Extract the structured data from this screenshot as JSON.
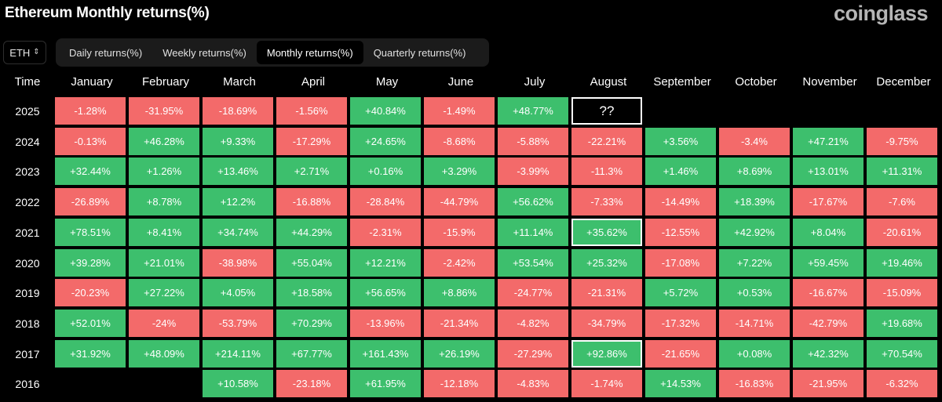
{
  "title": "Ethereum Monthly returns(%)",
  "brand": "coinglass",
  "asset_selector": {
    "value": "ETH"
  },
  "tabs": [
    {
      "label": "Daily returns(%)",
      "active": false
    },
    {
      "label": "Weekly returns(%)",
      "active": false
    },
    {
      "label": "Monthly returns(%)",
      "active": true
    },
    {
      "label": "Quarterly returns(%)",
      "active": false
    }
  ],
  "colors": {
    "positive": "#3dbf6d",
    "negative": "#f36a6a",
    "background": "#000000"
  },
  "chart_data": {
    "type": "table",
    "row_header": "Time",
    "columns": [
      "January",
      "February",
      "March",
      "April",
      "May",
      "June",
      "July",
      "August",
      "September",
      "October",
      "November",
      "December"
    ],
    "rows": [
      {
        "year": "2025",
        "values": [
          "-1.28%",
          "-31.95%",
          "-18.69%",
          "-1.56%",
          "+40.84%",
          "-1.49%",
          "+48.77%",
          "??",
          "",
          "",
          "",
          ""
        ]
      },
      {
        "year": "2024",
        "values": [
          "-0.13%",
          "+46.28%",
          "+9.33%",
          "-17.29%",
          "+24.65%",
          "-8.68%",
          "-5.88%",
          "-22.21%",
          "+3.56%",
          "-3.4%",
          "+47.21%",
          "-9.75%"
        ]
      },
      {
        "year": "2023",
        "values": [
          "+32.44%",
          "+1.26%",
          "+13.46%",
          "+2.71%",
          "+0.16%",
          "+3.29%",
          "-3.99%",
          "-11.3%",
          "+1.46%",
          "+8.69%",
          "+13.01%",
          "+11.31%"
        ]
      },
      {
        "year": "2022",
        "values": [
          "-26.89%",
          "+8.78%",
          "+12.2%",
          "-16.88%",
          "-28.84%",
          "-44.79%",
          "+56.62%",
          "-7.33%",
          "-14.49%",
          "+18.39%",
          "-17.67%",
          "-7.6%"
        ]
      },
      {
        "year": "2021",
        "values": [
          "+78.51%",
          "+8.41%",
          "+34.74%",
          "+44.29%",
          "-2.31%",
          "-15.9%",
          "+11.14%",
          "+35.62%",
          "-12.55%",
          "+42.92%",
          "+8.04%",
          "-20.61%"
        ]
      },
      {
        "year": "2020",
        "values": [
          "+39.28%",
          "+21.01%",
          "-38.98%",
          "+55.04%",
          "+12.21%",
          "-2.42%",
          "+53.54%",
          "+25.32%",
          "-17.08%",
          "+7.22%",
          "+59.45%",
          "+19.46%"
        ]
      },
      {
        "year": "2019",
        "values": [
          "-20.23%",
          "+27.22%",
          "+4.05%",
          "+18.58%",
          "+56.65%",
          "+8.86%",
          "-24.77%",
          "-21.31%",
          "+5.72%",
          "+0.53%",
          "-16.67%",
          "-15.09%"
        ]
      },
      {
        "year": "2018",
        "values": [
          "+52.01%",
          "-24%",
          "-53.79%",
          "+70.29%",
          "-13.96%",
          "-21.34%",
          "-4.82%",
          "-34.79%",
          "-17.32%",
          "-14.71%",
          "-42.79%",
          "+19.68%"
        ]
      },
      {
        "year": "2017",
        "values": [
          "+31.92%",
          "+48.09%",
          "+214.11%",
          "+67.77%",
          "+161.43%",
          "+26.19%",
          "-27.29%",
          "+92.86%",
          "-21.65%",
          "+0.08%",
          "+42.32%",
          "+70.54%"
        ]
      },
      {
        "year": "2016",
        "values": [
          "",
          "",
          "+10.58%",
          "-23.18%",
          "+61.95%",
          "-12.18%",
          "-4.83%",
          "-1.74%",
          "+14.53%",
          "-16.83%",
          "-21.95%",
          "-6.32%"
        ]
      }
    ],
    "highlighted_cells": [
      {
        "year": "2025",
        "month": "August"
      },
      {
        "year": "2021",
        "month": "August"
      },
      {
        "year": "2017",
        "month": "August"
      }
    ]
  }
}
